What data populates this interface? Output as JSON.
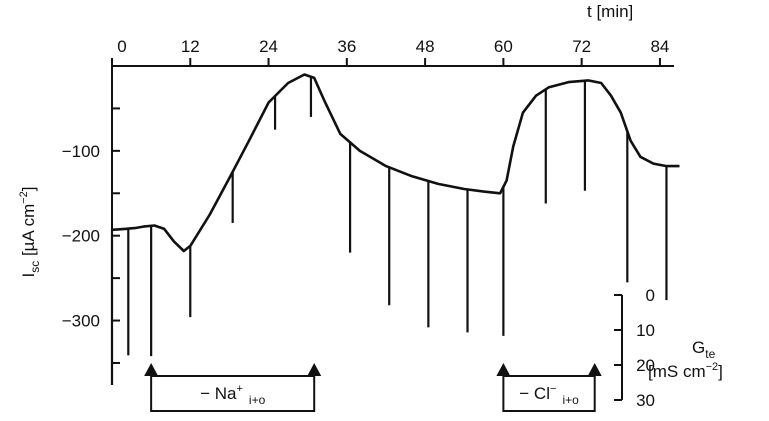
{
  "chart_data": {
    "type": "line",
    "x_axis": {
      "label": "t [min]",
      "ticks": [
        0,
        12,
        24,
        36,
        48,
        60,
        72,
        84
      ],
      "tick_labels": [
        "0",
        "12",
        "24",
        "36",
        "48",
        "60",
        "72",
        "84"
      ],
      "range": [
        0,
        88
      ],
      "position": "top"
    },
    "y_axis": {
      "label_main": "I",
      "label_sub": "sc",
      "label_unit": " [µA cm",
      "label_sup": "−2",
      "label_close": "]",
      "ticks": [
        -100,
        -200,
        -300
      ],
      "tick_labels": [
        "−100",
        "−200",
        "−300"
      ],
      "range": [
        -370,
        0
      ]
    },
    "conductance_axis": {
      "label_main": "G",
      "label_sub": "te",
      "label_line2": "[mS cm",
      "label_sup": "−2",
      "label_close": "]",
      "ticks": [
        0,
        10,
        20,
        30
      ],
      "tick_labels": [
        "0",
        "10",
        "20",
        "30"
      ]
    },
    "series": [
      {
        "points": [
          [
            0,
            -193
          ],
          [
            2,
            -192
          ],
          [
            3.5,
            -191
          ],
          [
            5,
            -189
          ],
          [
            6.5,
            -188
          ],
          [
            8,
            -192
          ],
          [
            9.5,
            -207
          ],
          [
            11,
            -218
          ],
          [
            12,
            -212
          ],
          [
            15,
            -175
          ],
          [
            18,
            -132
          ],
          [
            21,
            -88
          ],
          [
            24,
            -43
          ],
          [
            27,
            -20
          ],
          [
            29.5,
            -10
          ],
          [
            31,
            -14
          ],
          [
            32.5,
            -40
          ],
          [
            35,
            -80
          ],
          [
            38,
            -100
          ],
          [
            42,
            -118
          ],
          [
            46,
            -130
          ],
          [
            50,
            -139
          ],
          [
            54,
            -145
          ],
          [
            57,
            -148
          ],
          [
            59.5,
            -150
          ],
          [
            60.5,
            -135
          ],
          [
            61.5,
            -95
          ],
          [
            63,
            -55
          ],
          [
            65,
            -35
          ],
          [
            67,
            -25
          ],
          [
            70,
            -19
          ],
          [
            73,
            -17
          ],
          [
            75,
            -20
          ],
          [
            76.5,
            -35
          ],
          [
            78,
            -55
          ],
          [
            79.5,
            -88
          ],
          [
            81,
            -107
          ],
          [
            83,
            -115
          ],
          [
            85,
            -118
          ],
          [
            87,
            -118
          ]
        ]
      }
    ],
    "deflections": [
      {
        "t": 0,
        "bottom": -376
      },
      {
        "t": 2.5,
        "bottom": -341
      },
      {
        "t": 6,
        "bottom": -342
      },
      {
        "t": 12,
        "bottom": -296
      },
      {
        "t": 18.5,
        "bottom": -185
      },
      {
        "t": 25,
        "bottom": -75
      },
      {
        "t": 30.5,
        "bottom": -60
      },
      {
        "t": 36.5,
        "bottom": -220
      },
      {
        "t": 42.5,
        "bottom": -282
      },
      {
        "t": 48.5,
        "bottom": -308
      },
      {
        "t": 54.5,
        "bottom": -314
      },
      {
        "t": 60,
        "bottom": -318
      },
      {
        "t": 66.5,
        "bottom": -162
      },
      {
        "t": 72.5,
        "bottom": -147
      },
      {
        "t": 79,
        "bottom": -255
      },
      {
        "t": 85,
        "bottom": -276
      }
    ],
    "annotations": [
      {
        "main": "− Na",
        "sup": "+",
        "sub": "i+o",
        "t_start": 6,
        "t_end": 31
      },
      {
        "main": "− Cl",
        "sup": "−",
        "sub": "i+o",
        "t_start": 60,
        "t_end": 74
      }
    ]
  }
}
